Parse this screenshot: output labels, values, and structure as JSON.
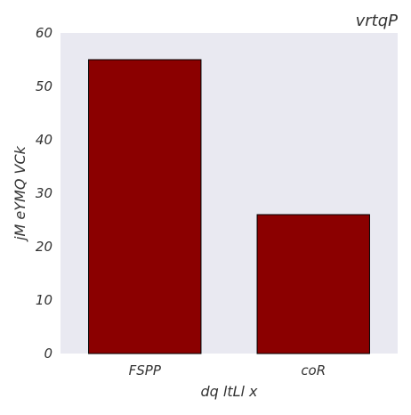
{
  "chart_data": {
    "type": "bar",
    "title": "vrtqP",
    "xlabel": "dq  ltLl x",
    "ylabel": "jM  eYMQ VCk",
    "categories": [
      "FSPP",
      "coR"
    ],
    "values": [
      55,
      26
    ],
    "ylim": [
      0,
      60
    ],
    "yticks": [
      0,
      10,
      20,
      30,
      40,
      50,
      60
    ],
    "grid": false,
    "colors": {
      "bar": "#8b0000",
      "bar_edge": "#000000",
      "plot_background": "#e9e9f1",
      "text": "#333333"
    }
  }
}
